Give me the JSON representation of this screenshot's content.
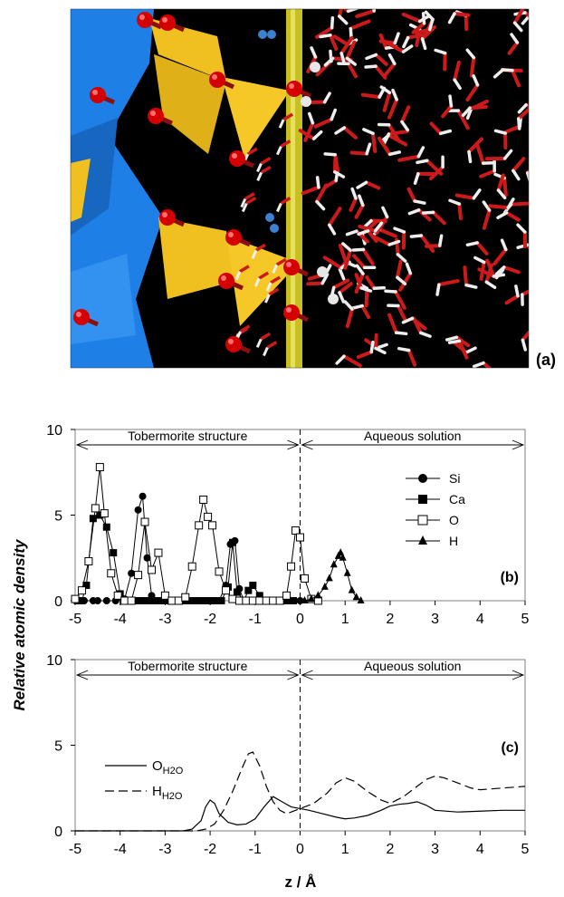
{
  "panel_labels": {
    "a": "(a)",
    "b": "(b)",
    "c": "(c)"
  },
  "colors": {
    "sim_background": "#000000",
    "ca_polyhedra": "#1e7fe6",
    "si_tetrahedra": "#f0c020",
    "oxygen": "#cc0000",
    "hydrogen": "#e8e8e8",
    "interface_plane": "#c8c020"
  },
  "chart_data": [
    {
      "type": "scatter",
      "panel": "(b)",
      "region_left": "Tobermorite structure",
      "region_right": "Aqueous solution",
      "ylabel": "Relative atomic density",
      "xlim": [
        -5,
        5
      ],
      "ylim": [
        0,
        10
      ],
      "xticks": [
        -5,
        -4,
        -3,
        -2,
        -1,
        0,
        1,
        2,
        3,
        4,
        5
      ],
      "yticks": [
        0,
        5,
        10
      ],
      "legend_position": "right",
      "interface_line_x": 0,
      "series": [
        {
          "name": "Si",
          "marker": "circle-filled",
          "x": [
            -4.95,
            -4.8,
            -4.6,
            -4.5,
            -4.3,
            -4.1,
            -3.9,
            -3.75,
            -3.6,
            -3.5,
            -3.4,
            -3.3,
            -3.15,
            -3.0,
            -2.85,
            -2.7,
            -2.55,
            -2.4,
            -2.25,
            -2.1,
            -1.95,
            -1.8,
            -1.65,
            -1.55,
            -1.45,
            -1.35,
            -1.25,
            -1.1,
            -0.9,
            -0.7,
            -0.5,
            -0.3,
            -0.15,
            0.0
          ],
          "y": [
            0,
            0,
            0,
            0,
            0,
            0,
            0.1,
            1.6,
            5.3,
            6.1,
            2.5,
            0.3,
            0,
            0,
            0,
            0,
            0,
            0,
            0,
            0,
            0,
            0,
            0.9,
            3.3,
            3.5,
            0.7,
            0,
            0,
            0,
            0,
            0,
            0,
            0,
            0
          ]
        },
        {
          "name": "Ca",
          "marker": "square-filled",
          "x": [
            -4.95,
            -4.85,
            -4.75,
            -4.6,
            -4.45,
            -4.3,
            -4.15,
            -4.0,
            -3.85,
            -3.7,
            -3.55,
            -3.4,
            -3.25,
            -3.1,
            -2.95,
            -2.8,
            -2.65,
            -2.5,
            -2.35,
            -2.2,
            -2.05,
            -1.9,
            -1.75,
            -1.6,
            -1.5,
            -1.4,
            -1.25,
            -1.15,
            -1.05,
            -0.9,
            -0.75,
            -0.6,
            -0.45,
            -0.3,
            -0.15
          ],
          "y": [
            0,
            0,
            0.9,
            4.8,
            5.0,
            4.3,
            2.8,
            0.4,
            0,
            0,
            0,
            0,
            0,
            0,
            0,
            0,
            0,
            0,
            0,
            0,
            0,
            0,
            0,
            0.8,
            3.4,
            0.5,
            0,
            0.6,
            0.9,
            0.3,
            0,
            0,
            0,
            0,
            0
          ]
        },
        {
          "name": "O",
          "marker": "square-open",
          "x": [
            -5.0,
            -4.85,
            -4.7,
            -4.55,
            -4.45,
            -4.35,
            -4.2,
            -4.05,
            -3.9,
            -3.75,
            -3.6,
            -3.45,
            -3.3,
            -3.15,
            -3.0,
            -2.85,
            -2.7,
            -2.55,
            -2.4,
            -2.25,
            -2.15,
            -2.05,
            -1.95,
            -1.8,
            -1.65,
            -1.5,
            -1.35,
            -1.2,
            -1.05,
            -0.9,
            -0.75,
            -0.6,
            -0.45,
            -0.3,
            -0.2,
            -0.1,
            0.0,
            0.1,
            0.25,
            0.4
          ],
          "y": [
            0.1,
            0.6,
            2.3,
            5.4,
            7.8,
            5.1,
            1.6,
            0.3,
            0,
            0,
            1.5,
            4.6,
            1.8,
            2.8,
            0.3,
            0,
            0,
            0.2,
            2.0,
            4.4,
            5.9,
            4.9,
            4.4,
            1.7,
            0.6,
            0.1,
            0,
            0,
            0,
            0,
            0,
            0,
            0,
            0.3,
            2.0,
            4.1,
            3.7,
            1.3,
            0.1,
            0
          ]
        },
        {
          "name": "H",
          "marker": "triangle-filled",
          "x": [
            0.1,
            0.25,
            0.4,
            0.55,
            0.65,
            0.75,
            0.85,
            0.9,
            0.95,
            1.05,
            1.15,
            1.25,
            1.35
          ],
          "y": [
            0,
            0.1,
            0.3,
            0.8,
            1.3,
            2.1,
            2.6,
            2.8,
            2.5,
            1.6,
            0.6,
            0.2,
            0
          ]
        }
      ]
    },
    {
      "type": "line",
      "panel": "(c)",
      "region_left": "Tobermorite structure",
      "region_right": "Aqueous solution",
      "xlabel": "z  /  Å",
      "xlim": [
        -5,
        5
      ],
      "ylim": [
        0,
        10
      ],
      "xticks": [
        -5,
        -4,
        -3,
        -2,
        -1,
        0,
        1,
        2,
        3,
        4,
        5
      ],
      "yticks": [
        0,
        5,
        10
      ],
      "legend_position": "left",
      "interface_line_x": 0,
      "series": [
        {
          "name_main": "O",
          "name_sub": "H2O",
          "dash": "solid",
          "x": [
            -5,
            -2.6,
            -2.4,
            -2.2,
            -2.1,
            -2.0,
            -1.9,
            -1.8,
            -1.6,
            -1.4,
            -1.2,
            -1.0,
            -0.8,
            -0.6,
            -0.4,
            -0.2,
            0,
            0.2,
            0.5,
            0.8,
            1.0,
            1.2,
            1.5,
            1.8,
            2.0,
            2.2,
            2.4,
            2.6,
            2.8,
            3.0,
            3.5,
            4.0,
            4.5,
            5.0
          ],
          "y": [
            0,
            0,
            0.1,
            0.6,
            1.4,
            1.8,
            1.6,
            1.0,
            0.5,
            0.35,
            0.4,
            0.7,
            1.4,
            2.0,
            1.7,
            1.4,
            1.3,
            1.2,
            1.0,
            0.8,
            0.7,
            0.75,
            0.9,
            1.2,
            1.45,
            1.55,
            1.6,
            1.7,
            1.5,
            1.2,
            1.1,
            1.15,
            1.2,
            1.2
          ]
        },
        {
          "name_main": "H",
          "name_sub": "H2O",
          "dash": "dashed",
          "x": [
            -5,
            -2.3,
            -2.1,
            -1.9,
            -1.7,
            -1.5,
            -1.3,
            -1.15,
            -1.05,
            -0.9,
            -0.75,
            -0.6,
            -0.45,
            -0.3,
            0,
            0.3,
            0.6,
            0.8,
            1.0,
            1.2,
            1.5,
            1.8,
            2.0,
            2.3,
            2.6,
            2.8,
            3.0,
            3.2,
            3.5,
            3.8,
            4.0,
            4.5,
            5.0
          ],
          "y": [
            0,
            0,
            0.1,
            0.4,
            1.2,
            2.3,
            3.6,
            4.5,
            4.6,
            3.8,
            2.6,
            1.7,
            1.2,
            1.0,
            1.3,
            1.6,
            2.2,
            2.8,
            3.1,
            2.9,
            2.3,
            1.8,
            1.6,
            2.0,
            2.6,
            3.0,
            3.2,
            3.1,
            2.8,
            2.5,
            2.4,
            2.5,
            2.6
          ]
        }
      ]
    }
  ]
}
